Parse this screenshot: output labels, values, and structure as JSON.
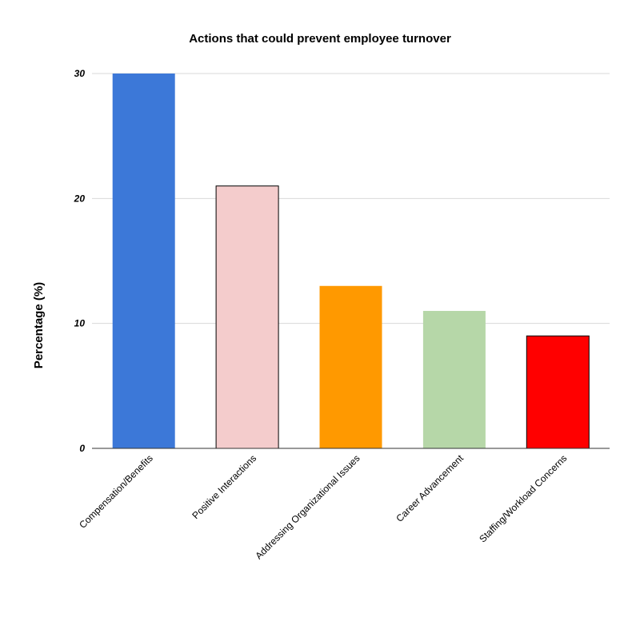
{
  "chart_data": {
    "type": "bar",
    "title": "Actions that could prevent employee turnover",
    "xlabel": "",
    "ylabel": "Percentage (%)",
    "ylim": [
      0,
      30
    ],
    "yticks": [
      0,
      10,
      20,
      30
    ],
    "grid": true,
    "categories": [
      "Compensation/Benefits",
      "Positive Interactions",
      "Addressing Organizational Issues",
      "Career Advancement",
      "Staffing/Workload Concerns"
    ],
    "values": [
      30,
      21,
      13,
      11,
      9
    ],
    "colors": [
      "#3c78d8",
      "#f4cccc",
      "#ff9900",
      "#b6d7a8",
      "#ff0000"
    ],
    "outlined": [
      false,
      true,
      false,
      false,
      true
    ]
  }
}
